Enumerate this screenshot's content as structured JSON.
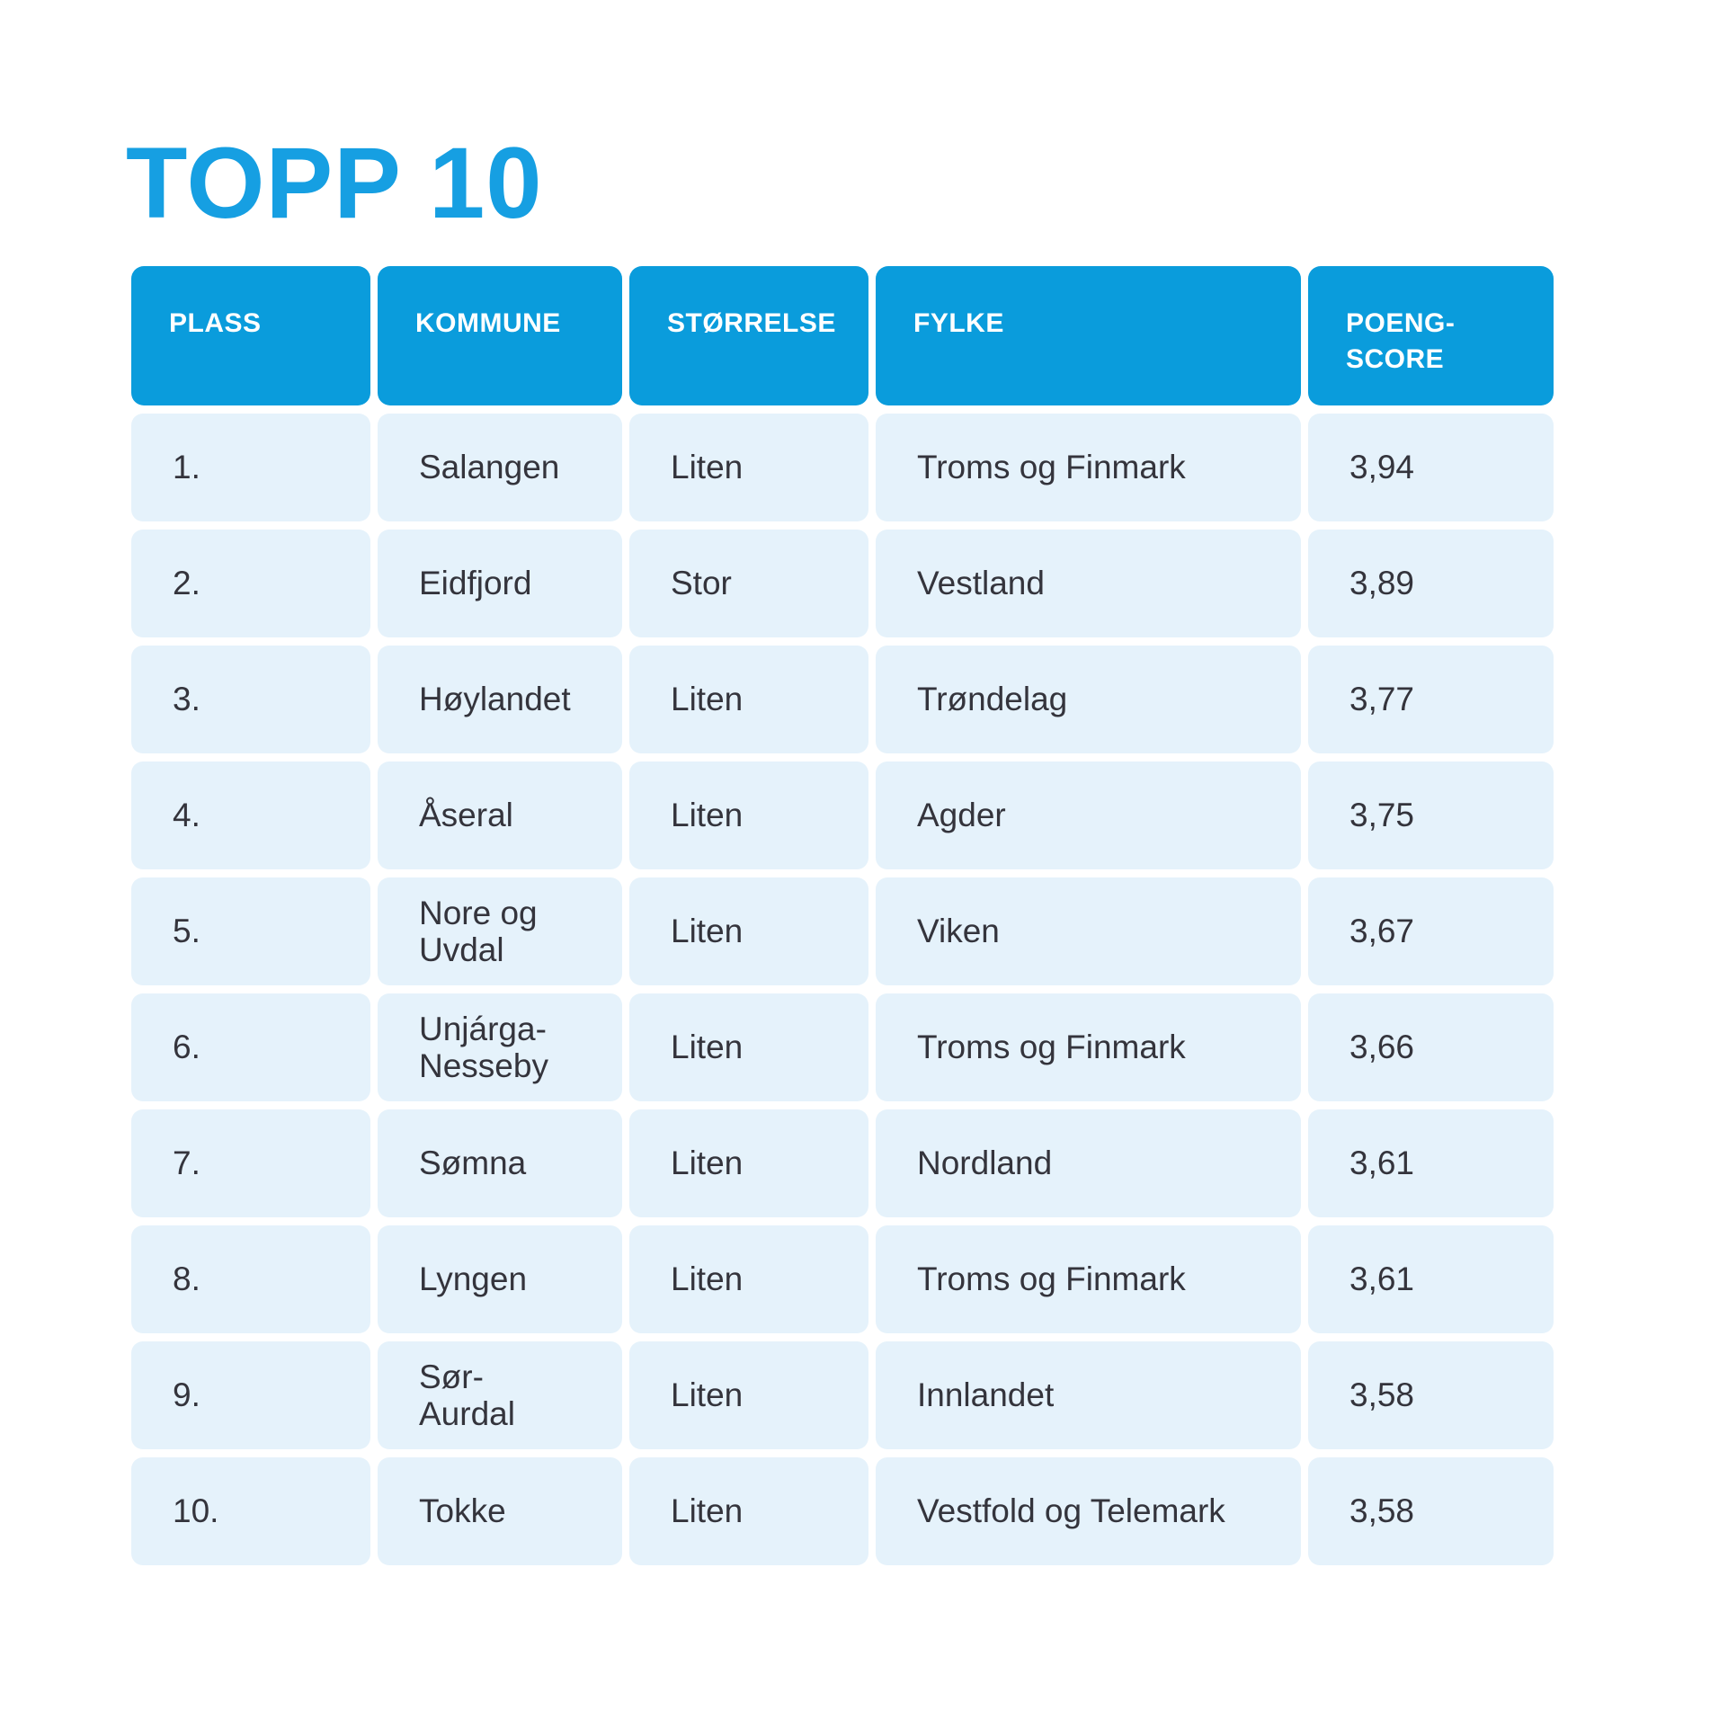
{
  "title": "TOPP 10",
  "colors": {
    "title_color": "#169fe2",
    "header_bg": "#0a9cdc",
    "row_bg": "#e5f2fb",
    "cell_text": "#34343c"
  },
  "table": {
    "columns": [
      {
        "key": "plass",
        "label": "PLASS"
      },
      {
        "key": "kommune",
        "label": "KOMMUNE"
      },
      {
        "key": "storrelse",
        "label": "STØRRELSE"
      },
      {
        "key": "fylke",
        "label": "FYLKE"
      },
      {
        "key": "poengscore",
        "label": "POENG-\nSCORE"
      }
    ],
    "rows": [
      {
        "plass": "1.",
        "kommune": "Salangen",
        "storrelse": "Liten",
        "fylke": "Troms og Finmark",
        "poengscore": "3,94"
      },
      {
        "plass": "2.",
        "kommune": "Eidfjord",
        "storrelse": "Stor",
        "fylke": "Vestland",
        "poengscore": "3,89"
      },
      {
        "plass": "3.",
        "kommune": "Høylandet",
        "storrelse": "Liten",
        "fylke": "Trøndelag",
        "poengscore": "3,77"
      },
      {
        "plass": "4.",
        "kommune": "Åseral",
        "storrelse": "Liten",
        "fylke": "Agder",
        "poengscore": "3,75"
      },
      {
        "plass": "5.",
        "kommune": "Nore og\nUvdal",
        "storrelse": "Liten",
        "fylke": "Viken",
        "poengscore": "3,67"
      },
      {
        "plass": "6.",
        "kommune": "Unjárga-\nNesseby",
        "storrelse": "Liten",
        "fylke": "Troms og Finmark",
        "poengscore": "3,66"
      },
      {
        "plass": "7.",
        "kommune": "Sømna",
        "storrelse": "Liten",
        "fylke": "Nordland",
        "poengscore": "3,61"
      },
      {
        "plass": "8.",
        "kommune": "Lyngen",
        "storrelse": "Liten",
        "fylke": "Troms og Finmark",
        "poengscore": "3,61"
      },
      {
        "plass": "9.",
        "kommune": "Sør-\nAurdal",
        "storrelse": "Liten",
        "fylke": "Innlandet",
        "poengscore": "3,58"
      },
      {
        "plass": "10.",
        "kommune": "Tokke",
        "storrelse": "Liten",
        "fylke": "Vestfold og Telemark",
        "poengscore": "3,58"
      }
    ]
  }
}
